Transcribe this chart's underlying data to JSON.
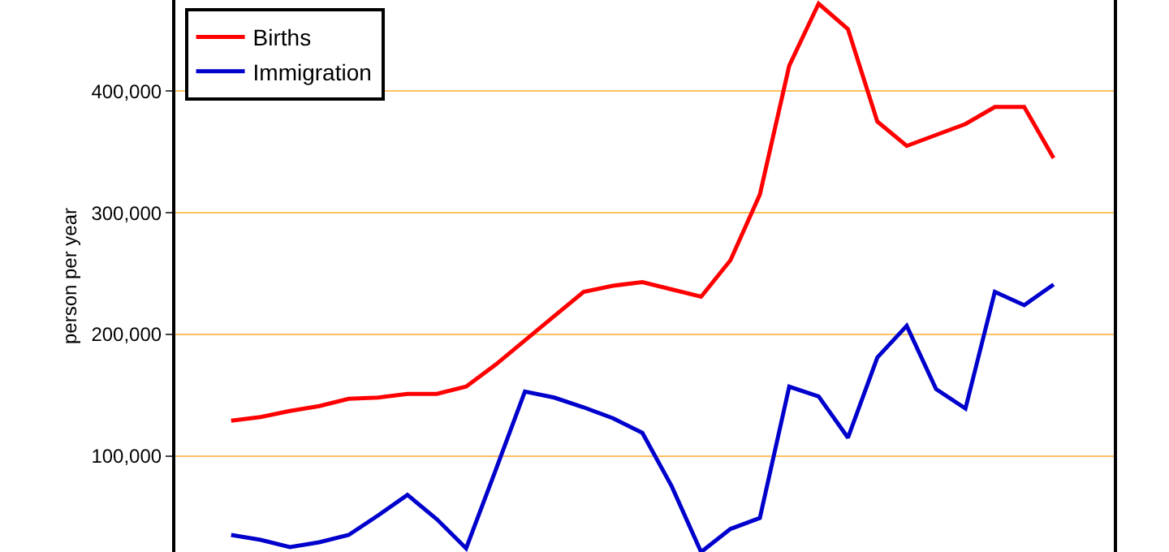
{
  "chart_data": {
    "type": "line",
    "ylabel": "person per year",
    "categories": [
      null,
      null,
      null,
      null,
      null,
      null,
      null,
      null,
      null,
      null,
      null,
      null,
      null,
      null,
      null,
      null,
      null,
      null,
      null,
      null,
      null,
      null,
      null,
      null,
      null,
      null,
      null,
      null,
      null
    ],
    "series": [
      {
        "name": "Births",
        "color": "#ff0000",
        "values": [
          129000,
          132000,
          137000,
          141000,
          147000,
          148000,
          151000,
          151000,
          157000,
          175000,
          195000,
          215000,
          235000,
          240000,
          243000,
          237000,
          231000,
          261000,
          315000,
          421000,
          472000,
          451000,
          375000,
          355000,
          364000,
          373000,
          387000,
          387000,
          345000
        ]
      },
      {
        "name": "Immigration",
        "color": "#0000cc",
        "values": [
          35000,
          31000,
          25000,
          29000,
          35000,
          51000,
          68000,
          48000,
          24000,
          88000,
          153000,
          148000,
          140000,
          131000,
          119000,
          75000,
          21000,
          40000,
          49000,
          157000,
          149000,
          115000,
          181000,
          207000,
          155000,
          139000,
          235000,
          224000,
          241000
        ]
      }
    ],
    "ylim": [
      21000,
      475000
    ],
    "yticks": [
      {
        "value": 100000,
        "label": "100,000"
      },
      {
        "value": 200000,
        "label": "200,000"
      },
      {
        "value": 300000,
        "label": "300,000"
      },
      {
        "value": 400000,
        "label": "400,000"
      }
    ],
    "grid": "y",
    "legend": "top left",
    "marker": "none",
    "line_style": "solid",
    "tick_labels": "y"
  }
}
